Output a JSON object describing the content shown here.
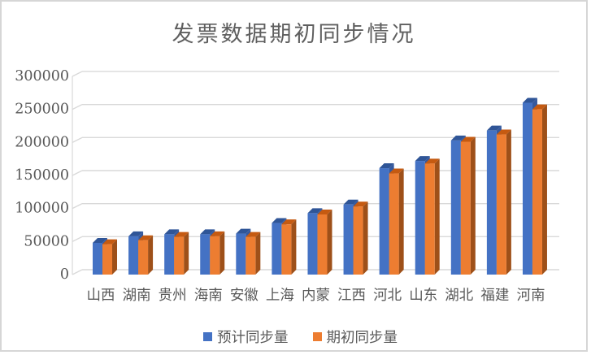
{
  "chart_data": {
    "type": "bar",
    "style": "3d-column",
    "title": "发票数据期初同步情况",
    "xlabel": "",
    "ylabel": "",
    "categories": [
      "山西",
      "湖南",
      "贵州",
      "海南",
      "安徽",
      "上海",
      "内蒙",
      "江西",
      "河北",
      "山东",
      "湖北",
      "福建",
      "河南"
    ],
    "series": [
      {
        "name": "预计同步量",
        "color": "#4472C4",
        "top_color": "#2F5597",
        "side_color": "#35599E",
        "values": [
          48000,
          58000,
          61000,
          61000,
          62000,
          78000,
          93000,
          106000,
          161000,
          172000,
          203000,
          218000,
          260000
        ]
      },
      {
        "name": "期初同步量",
        "color": "#ED7D31",
        "top_color": "#C55A11",
        "side_color": "#9E5019",
        "values": [
          46000,
          52000,
          57000,
          58000,
          57000,
          76000,
          91000,
          103000,
          153000,
          168000,
          201000,
          212000,
          250000
        ]
      }
    ],
    "ylim": [
      0,
      300000
    ],
    "y_ticks": [
      0,
      50000,
      100000,
      150000,
      200000,
      250000,
      300000
    ],
    "grid": true,
    "legend_position": "bottom",
    "text_color": "#595959",
    "grid_color": "#D9D9D9",
    "background_color": "#FFFFFF",
    "border_color": "#D6D6D6"
  }
}
